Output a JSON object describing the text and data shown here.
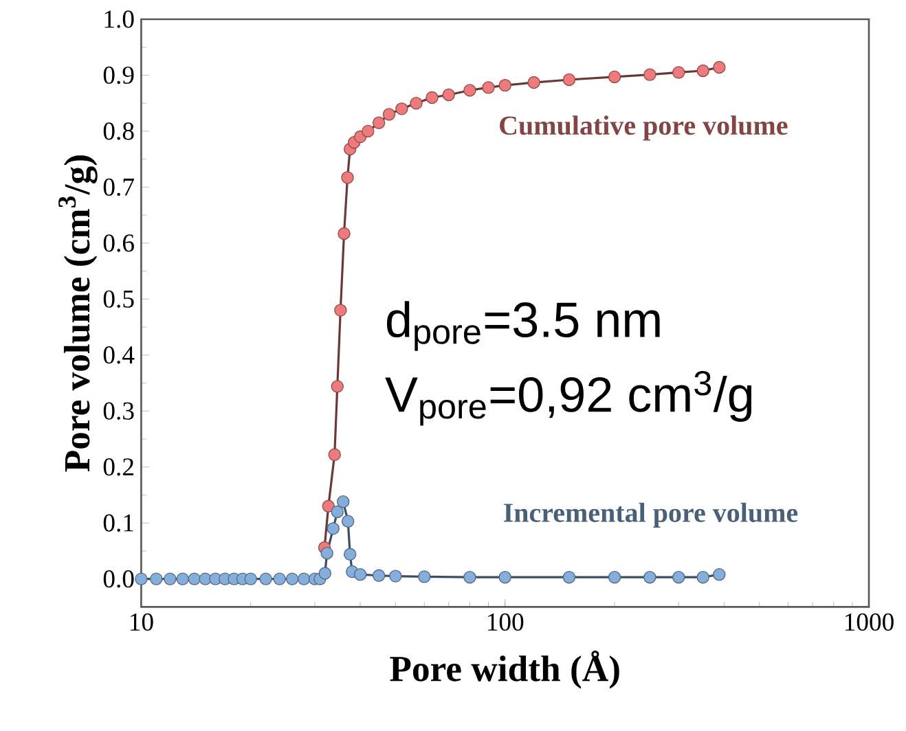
{
  "chart_data": {
    "type": "line",
    "xlabel": "Pore width (Å)",
    "ylabel": "Pore volume (cm$^{3}$/g)",
    "log": "x",
    "xlim": [
      10,
      1000
    ],
    "xticks": [
      10,
      100,
      1000
    ],
    "ylim": [
      -0.05,
      1.0
    ],
    "yticks": [
      {
        "value": 0,
        "label": "0.0"
      },
      {
        "value": 0.1,
        "label": "0.1"
      },
      {
        "value": 0.2,
        "label": "0.2"
      },
      {
        "value": 0.3,
        "label": "0.3"
      },
      {
        "value": 0.4,
        "label": "0.4"
      },
      {
        "value": 0.5,
        "label": "0.5"
      },
      {
        "value": 0.6,
        "label": "0.6"
      },
      {
        "value": 0.7,
        "label": "0.7"
      },
      {
        "value": 0.8,
        "label": "0.8"
      },
      {
        "value": 0.9,
        "label": "0.9"
      },
      {
        "value": 1.0,
        "label": "1.0"
      }
    ],
    "grid": false,
    "legend": false,
    "marker": "circle",
    "line_style": "solid",
    "series": [
      {
        "name": "Cumulative pore volume",
        "color": "#ee7b7b",
        "x": [
          31.9,
          32.7,
          34.0,
          34.6,
          35.3,
          36.1,
          36.9,
          37.5,
          38.5,
          40,
          42,
          45,
          48,
          52,
          57,
          63,
          70,
          80,
          90,
          100,
          120,
          150,
          200,
          250,
          300,
          350,
          388
        ],
        "values": [
          0.056,
          0.13,
          0.222,
          0.344,
          0.48,
          0.617,
          0.717,
          0.768,
          0.78,
          0.79,
          0.8,
          0.815,
          0.83,
          0.84,
          0.85,
          0.86,
          0.865,
          0.873,
          0.878,
          0.882,
          0.887,
          0.892,
          0.897,
          0.901,
          0.905,
          0.908,
          0.914
        ]
      },
      {
        "name": "Incremental pore volume",
        "color": "#86aedb",
        "x": [
          10,
          11,
          12,
          13,
          14,
          15,
          16,
          17,
          18,
          19,
          20,
          22,
          24,
          26,
          28,
          30,
          31,
          32,
          32.4,
          33.7,
          34.6,
          35.9,
          37.0,
          37.5,
          38.0,
          40,
          45,
          50,
          60,
          80,
          100,
          150,
          200,
          250,
          300,
          350,
          388
        ],
        "values": [
          0,
          0,
          0,
          0,
          0,
          0,
          0,
          0,
          0,
          0,
          0,
          0,
          0,
          0,
          0,
          0,
          0,
          0.01,
          0.046,
          0.09,
          0.12,
          0.138,
          0.103,
          0.044,
          0.013,
          0.008,
          0.006,
          0.005,
          0.004,
          0.003,
          0.003,
          0.003,
          0.003,
          0.003,
          0.003,
          0.003,
          0.008
        ]
      }
    ],
    "annotations": [
      "d$_{pore}$=3.5 nm",
      "V$_{pore}$=0,92 cm$^{3}$/g"
    ]
  }
}
